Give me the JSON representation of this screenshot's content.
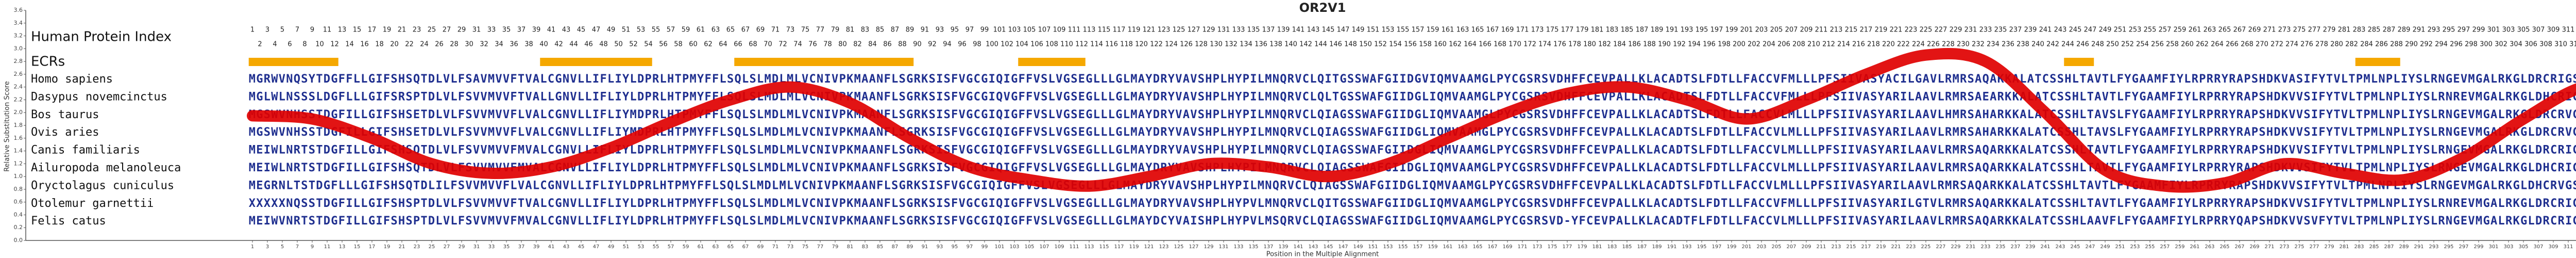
{
  "chart_data": {
    "type": "line",
    "title": "OR2V1",
    "ylabel": "Relative Substitution Score",
    "xlabel": "Position in the Multiple Alignment",
    "xlim": [
      1,
      319
    ],
    "xticks": [
      1,
      3,
      5,
      7,
      9,
      11,
      13,
      15,
      17,
      19,
      21,
      23,
      25,
      27,
      29,
      31,
      33,
      35,
      37,
      39,
      41,
      43,
      45,
      47,
      49,
      51,
      53,
      55,
      57,
      59,
      61,
      63,
      65,
      67,
      69,
      71,
      73,
      75,
      77,
      79,
      81,
      83,
      85,
      87,
      89,
      91,
      93,
      95,
      97,
      99,
      101,
      103,
      105,
      107,
      109,
      111,
      113,
      115,
      117,
      119,
      121,
      123,
      125,
      127,
      129,
      131,
      133,
      135,
      137,
      139,
      141,
      143,
      145,
      147,
      149,
      151,
      153,
      155,
      157,
      159,
      161,
      163,
      165,
      167,
      169,
      171,
      173,
      175,
      177,
      179,
      181,
      183,
      185,
      187,
      189,
      191,
      193,
      195,
      197,
      199,
      201,
      203,
      205,
      207,
      209,
      211,
      213,
      215,
      217,
      219,
      221,
      223,
      225,
      227,
      229,
      231,
      233,
      235,
      237,
      239,
      241,
      243,
      245,
      247,
      249,
      251,
      253,
      255,
      257,
      259,
      261,
      263,
      265,
      267,
      269,
      271,
      273,
      275,
      277,
      279,
      281,
      283,
      285,
      287,
      289,
      291,
      293,
      295,
      297,
      299,
      301,
      303,
      305,
      307,
      309,
      311,
      313,
      315,
      317,
      319
    ],
    "ylim": [
      0,
      3.6
    ],
    "yticks": [
      {
        "value": 0,
        "label": "0.0"
      },
      0.2,
      0.4,
      0.6,
      0.8,
      {
        "value": 1,
        "label": "1.0"
      },
      1.2,
      1.4,
      1.6,
      1.8,
      {
        "value": 2,
        "label": "2.0"
      },
      2.2,
      2.4,
      2.6,
      2.8,
      {
        "value": 3,
        "label": "3.0"
      },
      3.2,
      3.4,
      3.6
    ],
    "color": "#e00000",
    "x": [
      1,
      9,
      17,
      25,
      33,
      41,
      49,
      57,
      65,
      73,
      81,
      89,
      97,
      105,
      113,
      121,
      129,
      137,
      145,
      153,
      161,
      169,
      177,
      185,
      193,
      201,
      209,
      217,
      225,
      233,
      241,
      249,
      257,
      265,
      273,
      281,
      289,
      297,
      305,
      313,
      319
    ],
    "values": [
      1.95,
      1.9,
      1.6,
      1.2,
      1.05,
      1.15,
      1.45,
      1.85,
      2.2,
      2.4,
      2.15,
      1.6,
      1.15,
      0.95,
      0.85,
      1.0,
      1.2,
      1.15,
      1.0,
      1.2,
      1.6,
      2.0,
      2.3,
      2.4,
      2.2,
      1.9,
      2.2,
      2.6,
      2.9,
      2.8,
      2.0,
      1.1,
      0.85,
      0.9,
      1.2,
      1.05,
      0.95,
      1.3,
      1.9,
      2.4,
      2.3
    ],
    "human_protein_index": {
      "label": "Human Protein Index",
      "values": [
        1,
        2,
        3,
        4,
        5,
        6,
        7,
        8,
        9,
        10,
        11,
        12,
        13,
        14,
        15,
        16,
        17,
        18,
        19,
        20,
        21,
        22,
        23,
        24,
        25,
        26,
        27,
        28,
        29,
        30,
        31,
        32,
        33,
        34,
        35,
        36,
        37,
        38,
        39,
        40,
        41,
        42,
        43,
        44,
        45,
        46,
        47,
        48,
        49,
        50,
        51,
        52,
        53,
        54,
        55,
        56,
        57,
        58,
        59,
        60,
        61,
        62,
        63,
        64,
        65,
        66,
        67,
        68,
        69,
        70,
        71,
        72,
        73,
        74,
        75,
        76,
        77,
        78,
        79,
        80,
        81,
        82,
        83,
        84,
        85,
        86,
        87,
        88,
        89,
        90,
        91,
        92,
        93,
        94,
        95,
        96,
        97,
        98,
        99,
        100,
        101,
        102,
        103,
        104,
        105,
        106,
        107,
        108,
        109,
        110,
        111,
        112,
        113,
        114,
        115,
        116,
        117,
        118,
        119,
        120,
        121,
        122,
        123,
        124,
        125,
        126,
        127,
        128,
        129,
        130,
        131,
        132,
        133,
        134,
        135,
        136,
        137,
        138,
        139,
        140,
        141,
        142,
        143,
        144,
        145,
        146,
        147,
        148,
        149,
        150,
        151,
        152,
        153,
        154,
        155,
        156,
        157,
        158,
        159,
        160,
        161,
        162,
        163,
        164,
        165,
        166,
        167,
        168,
        169,
        170,
        171,
        172,
        173,
        174,
        175,
        176,
        177,
        178,
        179,
        180,
        181,
        182,
        183,
        184,
        185,
        186,
        187,
        188,
        189,
        190,
        191,
        192,
        193,
        194,
        195,
        196,
        197,
        198,
        199,
        200,
        201,
        202,
        203,
        204,
        205,
        206,
        207,
        208,
        209,
        210,
        211,
        212,
        213,
        214,
        215,
        216,
        217,
        218,
        219,
        220,
        221,
        222,
        223,
        224,
        225,
        226,
        227,
        228,
        229,
        230,
        231,
        232,
        233,
        234,
        235,
        236,
        237,
        238,
        239,
        240,
        241,
        242,
        243,
        244,
        245,
        246,
        247,
        248,
        249,
        250,
        251,
        252,
        253,
        254,
        255,
        256,
        257,
        258,
        259,
        260,
        261,
        262,
        263,
        264,
        265,
        266,
        267,
        268,
        269,
        270,
        271,
        272,
        273,
        274,
        275,
        276,
        277,
        278,
        279,
        280,
        281,
        282,
        283,
        284,
        285,
        286,
        287,
        288,
        289,
        290,
        291,
        292,
        293,
        294,
        295,
        296,
        297,
        298,
        299,
        300,
        301,
        302,
        303,
        304,
        305,
        306,
        307,
        308,
        309,
        310,
        311,
        312,
        313,
        314
      ]
    },
    "ecrs": {
      "label": "ECRs",
      "color": "#f5a800",
      "ranges": [
        [
          1,
          12
        ],
        [
          40,
          54
        ],
        [
          66,
          89
        ],
        [
          104,
          112
        ],
        [
          244,
          247
        ],
        [
          283,
          288
        ]
      ]
    },
    "sequence_color": "#1f2f8f",
    "alignment": [
      {
        "name": "Homo sapiens",
        "sequence": "MGRWVNQSYTDGFFLLGIFSHSQTDLVLFSAVMVVFTVALCGNVLLIFLIYLDPRLHTPMYFFLSQLSLMDLMLVCNIVPKMAANFLSGRKSISFVGCGIQIGFFVSLVGSEGLLLGLMAYDRYVAVSHPLHYPILMNQRVCLQITGSSWAFGIIDGVIQMVAAMGLPYCGSRSVDHFFCEVPALLKLACADTSLFDTLLFACCVFMLLLPFSIIVASYACILGAVLRMRSAQAKKALATCSSHLTAVTLFYGAAMFIYLRPRRYRAPSHDKVASIFYTVLTPMLNPLIYSLRNGEVMGALRKGLDRCRIGSQH"
      },
      {
        "name": "Dasypus novemcinctus",
        "sequence": "MGLWLNSSSLDGFLLLGIFSRSPTDLVLFSVVMVVFTVALLGNVLLIFLIYLDPRLHTPMYFFLSQLSLMDLMLVCNIVPKMAANFLSGRKSISFVGCGIQVGFFVSLVGSEGLLLGLMAYDRYVAVSHPLHYPILMNQRVCLQLTGSSWAFGIIDGLIQMVAAMGLPYCGSRSVDHFFCEVPALLKLACADTSLFDTLLFACCVFMLLLPFSIIVASYARILAAVLRMRSAEARKKALATCSSHLTAVTLFYGAAMFIYLRPRRYRAPSHDKVVSIFYTVLTPMLNPLIYSLRNREVMGALRKGLDHCRIGSQH"
      },
      {
        "name": "Bos taurus",
        "sequence": "MGSWVNHSSTDGFILLGIFSHSETDLVLFSVVMVVFLVALCGNVLLIFLIYMDPRLHTPMYFFLSQLSLMDLMLVCNIVPKMAANFLSGRKSISFVGCGIQIGFFVSLVGSEGLLLGLMAYDRYVAVSHPLHYPILMNQRVCLQIAGSSWAFGIIDGLIQMVAAMGLPYCGSRSVDHFFCEVPALLKLACADTSLFDTLLFACCVLMLLLPFSIIVASYARILAAVLHMRSAHARKKALATCSSHLTAVSLFYGAAMFIYLRPRRYRAPSHDKVVSIFYTVLTPMLNPLIYSLRNGEVMGALRKGLDRCRVGNWH"
      },
      {
        "name": "Ovis aries",
        "sequence": "MGSWVNHSSTDGFILLGIFSHSETDLVLFSVVMVVFLVALCGNVLLIFLIYMDPRLHTPMYFFLSQLSLMDLMLVCNIVPKMAANFLSGRKSISFVGCGIQIGFFVSLVGSEGLLLGLMAYDRYVAVSHPLHYPILMNQRVCLQIAGSSWAFGIIDGLIQMVAAMGLPYCGSRSVDHFFCEVPALLKLACADTSLFDTLLFACCVLMLLLPFSIIVASYARILAAVLRMRSAHARKKALATCSSHLTAVSLFYGAAMFIYLRPRRYRAPSHDKVVSIFYTVLTPMLNPLIYSLRNGEVMGALRKGLDRCRVGNWH"
      },
      {
        "name": "Canis familiaris",
        "sequence": "MEIWLNRTSTDGFILLGIFSHSQTDLVLFSVVMVVFMVALCGNVLLIFLIYLDPRLHTPMYFFLSQLSLMDLMLVCNIVPKMAANFLSGRKSISFVGCGIQIGFFVSLVGSEGLLLGLMAYDRYVAVSHPLHYPILMNQRVCLQIAGSSWAFGIIDGLIQMVAAMGLPYCGSRSVDHFFCEVPALLKLACADTSLFDTLLFACCVLMLLLPFSIIVASYARILAAVLRMRSAQARKKALATCSSHLTAVTLFYGAAMFIYLRPRRYRAPSHDKVVSIFYTVLTPMLNPLIYSLRNGEVMGALRKGLDRCRIGSQH"
      },
      {
        "name": "Ailuropoda melanoleuca",
        "sequence": "MEIWLNRTSTDGFILLGIFSHSQTDLVLFSVVMVVFMVALCGNVLLIFLIYLDPRLHTPMYFFLSQLSLMDLMLVCNIVPKMAANFLSGRKSISFVGCGIQIGFFVSLVGSEGLLLGLMAYDRYVAVSHPLHYPILMNQRVCLQIAGSSWAFGIIDGLIQMVAAMGLPYCGSRSVDHFFCEVPALLKLACADTSLFDTLLFACCVLMLLLPFSIIVASYARILAAVLRMRSAQARKKALATCSSHLTAVTLFYGAAMFIYLRPRRYRAPSHDKVVSIFYTVLTPMLNPLIYSLRNGEVMGALRKGLDHCRIGSQH"
      },
      {
        "name": "Oryctolagus cuniculus",
        "sequence": "MEGRNLTSTDGFLLLGIFSHSQTDLILFSVVMVVFLVALCGNVLLIFLIYLDPRLHTPMYFFLSQLSLMDLMLVCNIVPKMAANFLSGRKSISFVGCGIQIGFFVSLVGSEGLLLGLMAYDRYVAVSHPLHYPILMNQRVCLQIAGSSWAFGIIDGLIQMVAAMGLPYCGSRSVDHFFCEVPALLKLACADTSLFDTLLFACCVLMLLLPFSIIVASYARILAAVLRMRSAQARKKALATCSSHLTAVTLFYGAAMFIYLRPRRYRAPSHDKVVSIFYTVLTPMLNPLIYSLRNGEVMGALRKGLDHCRVGSQH"
      },
      {
        "name": "Otolemur garnettii",
        "sequence": "XXXXXNQSSTDGFILLGIFSHSPTDLVLFSVVMVVFTVALCGNVLLIFLIYLDPRLHTPMYFFLSQLSLMDLMLVCNIVPKMAANFLSGRKSISFVGCGIQIGFFVSLVGSEGLLLGLMAYDRYVAVSHPLHYPVLMNQRVCLQITGSSWAFGIIDGLIQMVAAMGLPYCGSRSVDHFFCEVPALLKLACADTSLFDTLLFACCVFMLLLPFSIIVASYARILGTVLRMRSAQARKKALATCSSHLTAVTLFYGAAMFIYLRPRRYRAPSHDKVVSIFYTVLTPMLNPLIYSLRNREVMGALRKGLDRCRIGSQH"
      },
      {
        "name": "Felis catus",
        "sequence": "MEIWVNRTSTDGFILLGIFSHSPTDLVLFSVVMVVFMVALCGNVLLIFLIYLDPRLHTPMYFFLSQLSLMDLMLVCNIVPKMAANFLSGRKSISFVGCGIQIGFFVSLVGSEGLLLGLMAYDCYVAISHPLHYPVLMSQRVCLQIAGSSWAFGIIDGLIQMVAAMGLPYCGSRSVD-YFCEVPALLKLACADTFLFDTLLFACCVLMLLLPFSIIVASYARILAAVLRMRSAQARKKALATCSSHLAAVFLFYGAAMFIYLRPRRYQAPSHDKVVSVFYTVLTPMLNPLIYSLRNGEVMGALRKGLDRCRIGSQH"
      }
    ]
  }
}
